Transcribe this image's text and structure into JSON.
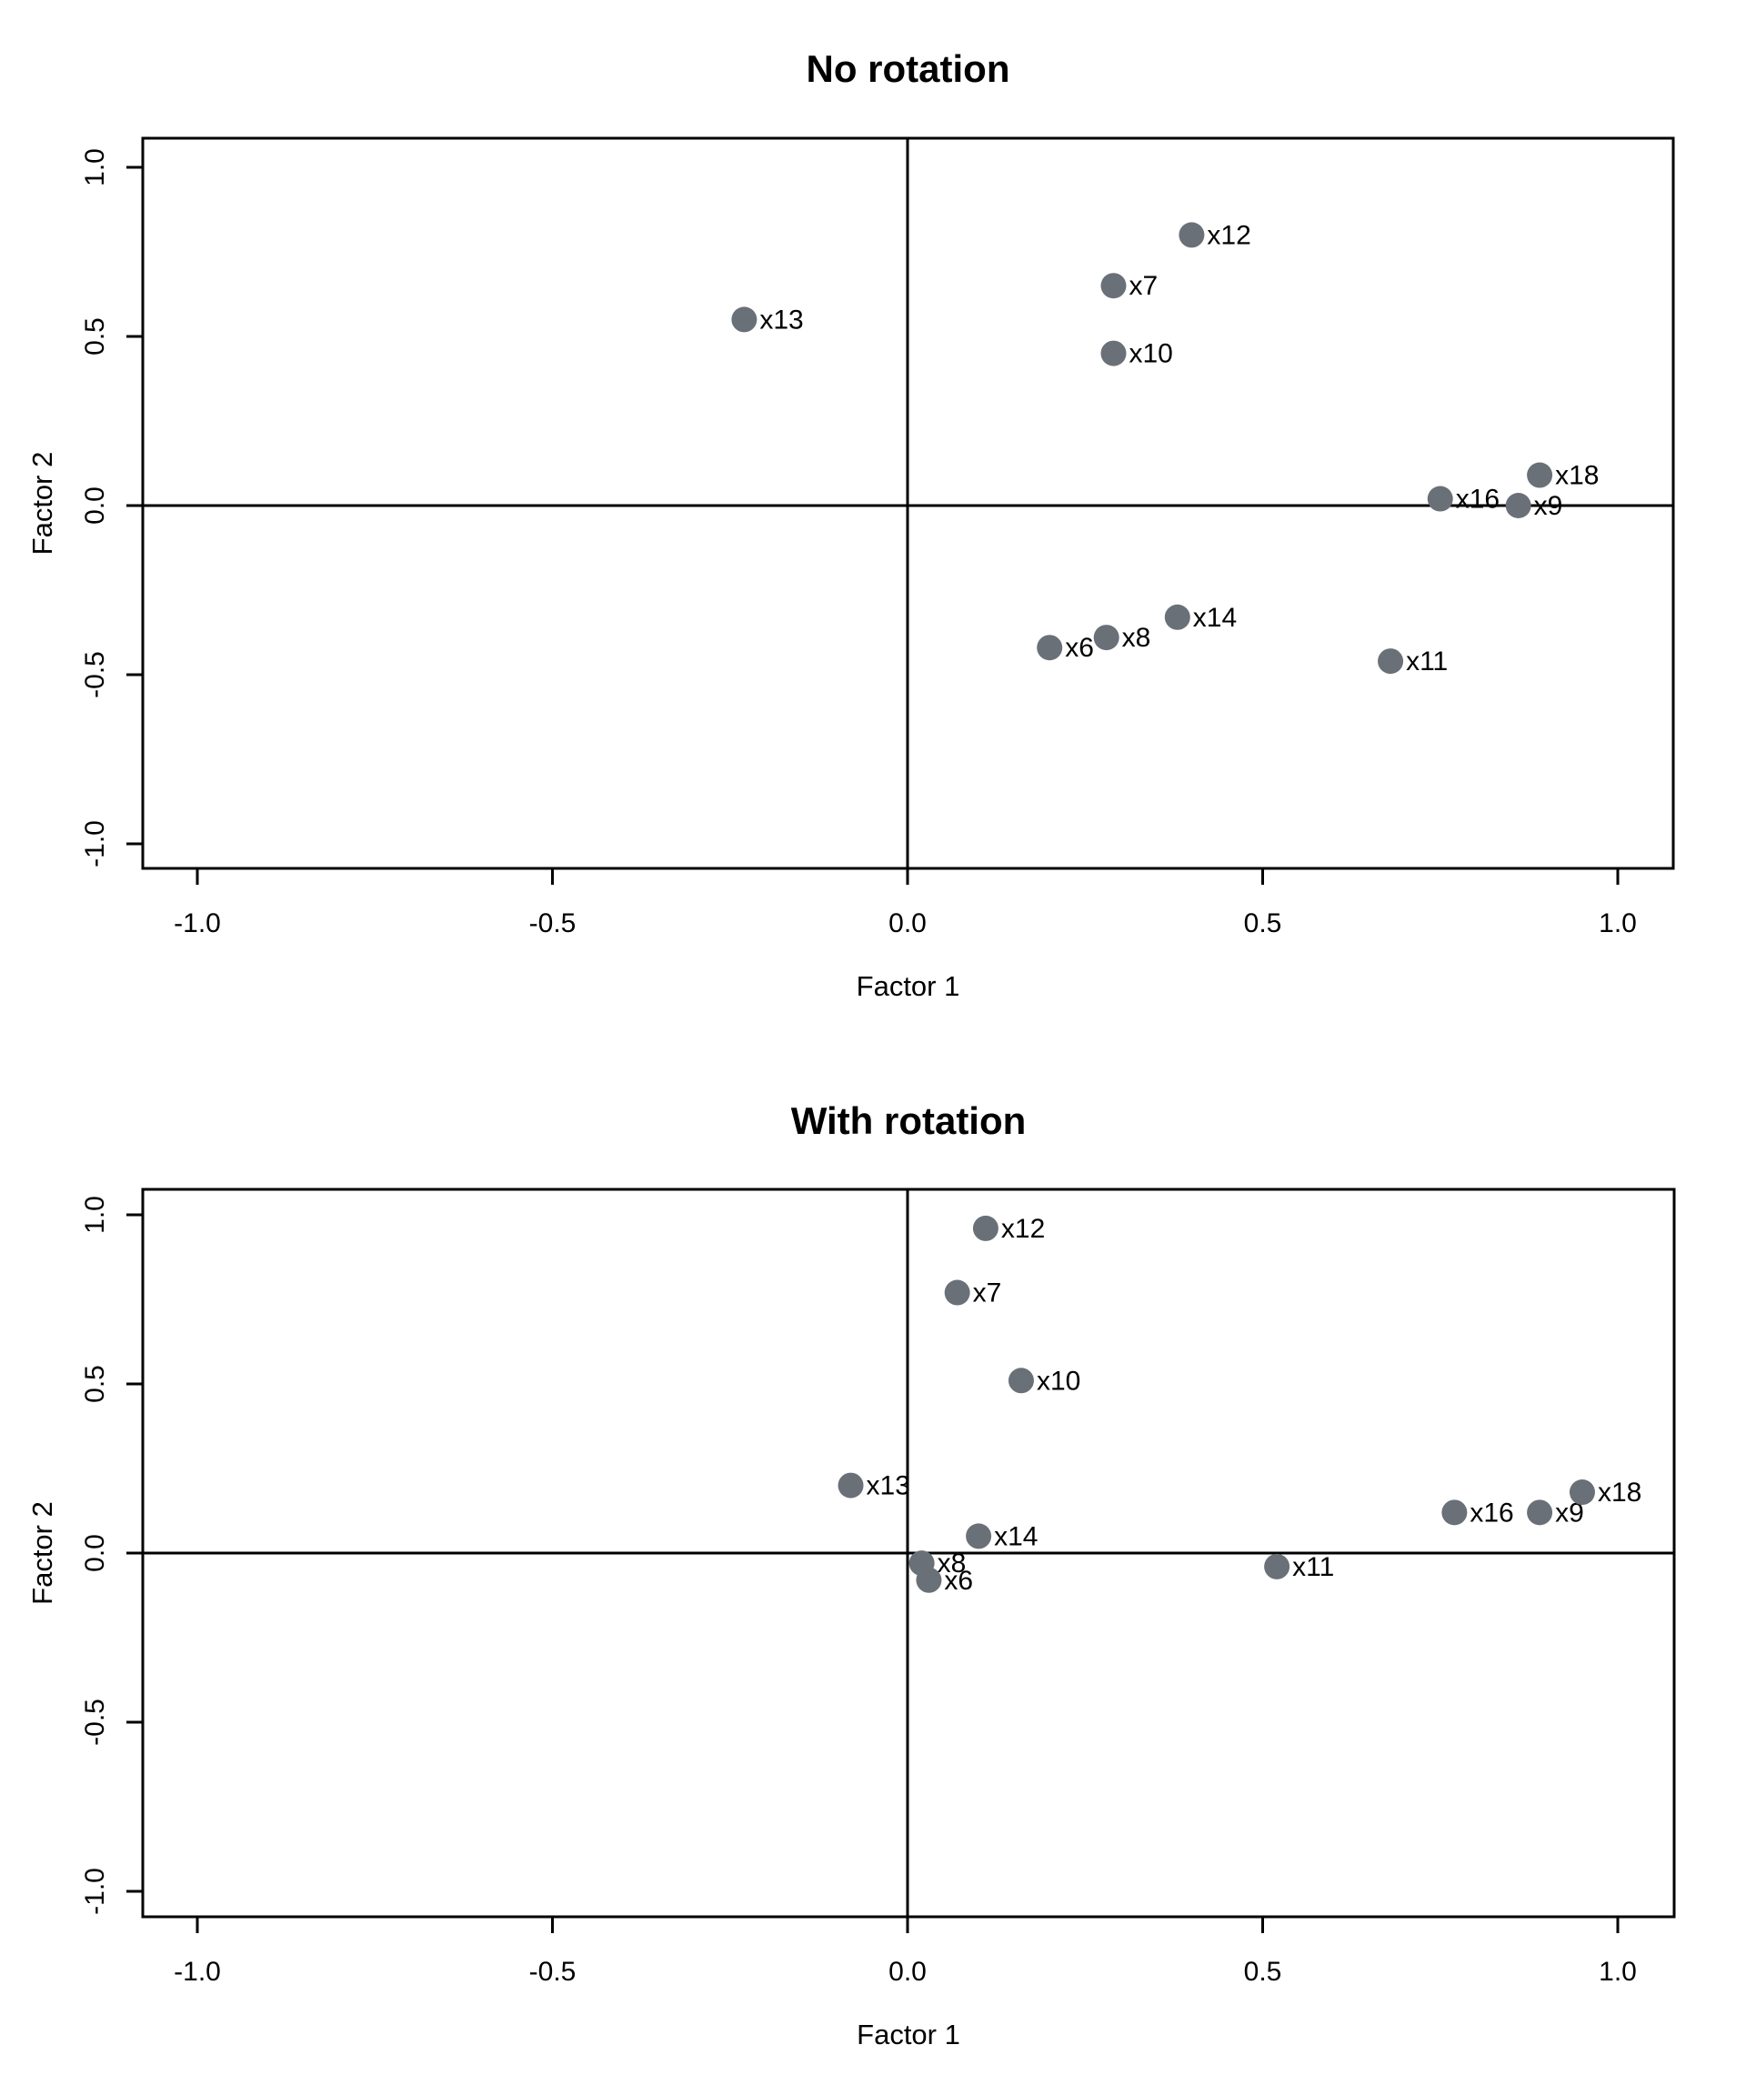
{
  "accent_color": "#6a7078",
  "axis_color": "#000000",
  "chart_data": [
    {
      "type": "scatter",
      "title": "No rotation",
      "xlabel": "Factor 1",
      "ylabel": "Factor 2",
      "xlim": [
        -1.08,
        1.08
      ],
      "ylim": [
        -1.08,
        1.08
      ],
      "grid": false,
      "zero_lines": true,
      "legend": "none",
      "xticks": [
        -1.0,
        -0.5,
        0.0,
        0.5,
        1.0
      ],
      "yticks": [
        -1.0,
        -0.5,
        0.0,
        0.5,
        1.0
      ],
      "xtick_labels": [
        "-1.0",
        "-0.5",
        "0.0",
        "0.5",
        "1.0"
      ],
      "ytick_labels": [
        "-1.0",
        "-0.5",
        "0.0",
        "0.5",
        "1.0"
      ],
      "points": [
        {
          "label": "x6",
          "x": 0.2,
          "y": -0.42
        },
        {
          "label": "x7",
          "x": 0.29,
          "y": 0.65
        },
        {
          "label": "x8",
          "x": 0.28,
          "y": -0.39
        },
        {
          "label": "x9",
          "x": 0.86,
          "y": 0.0
        },
        {
          "label": "x10",
          "x": 0.29,
          "y": 0.45
        },
        {
          "label": "x11",
          "x": 0.68,
          "y": -0.46
        },
        {
          "label": "x12",
          "x": 0.4,
          "y": 0.8
        },
        {
          "label": "x13",
          "x": -0.23,
          "y": 0.55
        },
        {
          "label": "x14",
          "x": 0.38,
          "y": -0.33
        },
        {
          "label": "x16",
          "x": 0.75,
          "y": 0.02
        },
        {
          "label": "x18",
          "x": 0.89,
          "y": 0.09
        }
      ]
    },
    {
      "type": "scatter",
      "title": "With rotation",
      "xlabel": "Factor 1",
      "ylabel": "Factor 2",
      "xlim": [
        -1.08,
        1.08
      ],
      "ylim": [
        -1.08,
        1.08
      ],
      "grid": false,
      "zero_lines": true,
      "legend": "none",
      "xticks": [
        -1.0,
        -0.5,
        0.0,
        0.5,
        1.0
      ],
      "yticks": [
        -1.0,
        -0.5,
        0.0,
        0.5,
        1.0
      ],
      "xtick_labels": [
        "-1.0",
        "-0.5",
        "0.0",
        "0.5",
        "1.0"
      ],
      "ytick_labels": [
        "-1.0",
        "-0.5",
        "0.0",
        "0.5",
        "1.0"
      ],
      "points": [
        {
          "label": "x6",
          "x": 0.03,
          "y": -0.08
        },
        {
          "label": "x7",
          "x": 0.07,
          "y": 0.77
        },
        {
          "label": "x8",
          "x": 0.02,
          "y": -0.03
        },
        {
          "label": "x9",
          "x": 0.89,
          "y": 0.12
        },
        {
          "label": "x10",
          "x": 0.16,
          "y": 0.51
        },
        {
          "label": "x11",
          "x": 0.52,
          "y": -0.04
        },
        {
          "label": "x12",
          "x": 0.11,
          "y": 0.96
        },
        {
          "label": "x13",
          "x": -0.08,
          "y": 0.2
        },
        {
          "label": "x14",
          "x": 0.1,
          "y": 0.05
        },
        {
          "label": "x16",
          "x": 0.77,
          "y": 0.12
        },
        {
          "label": "x18",
          "x": 0.95,
          "y": 0.18
        }
      ]
    }
  ]
}
